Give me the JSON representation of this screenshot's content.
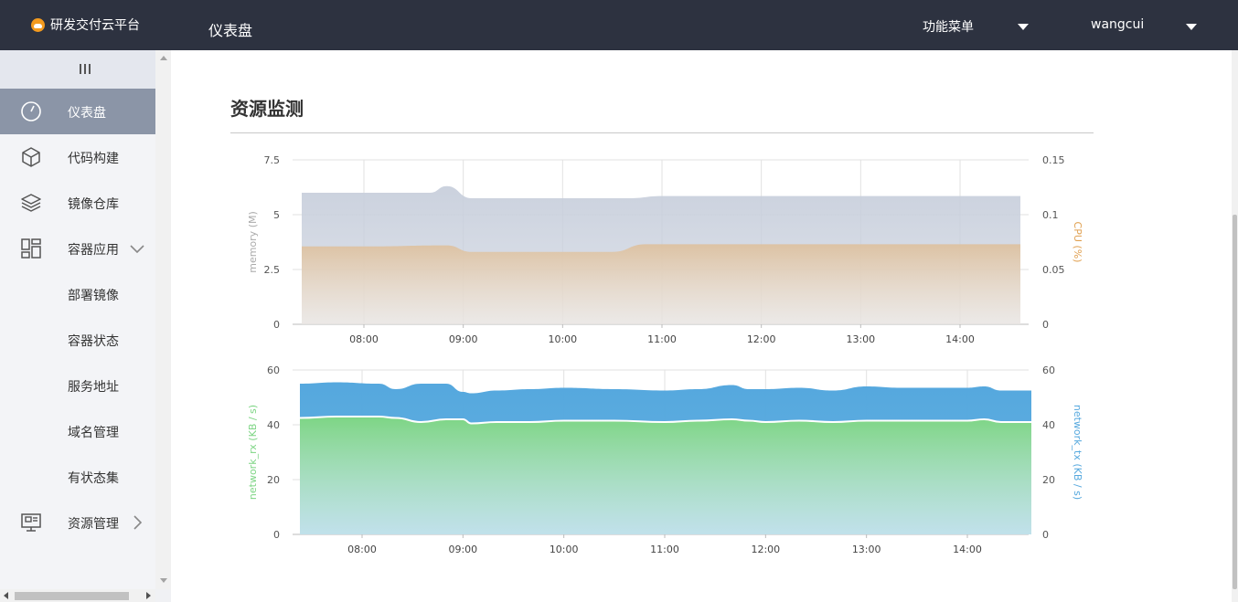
{
  "header": {
    "logo_text": "研发交付云平台",
    "page_title": "仪表盘",
    "menu_label": "功能菜单",
    "user_name": "wangcui"
  },
  "sidebar": {
    "items": [
      {
        "label": "仪表盘",
        "icon": "dashboard-icon",
        "active": true
      },
      {
        "label": "代码构建",
        "icon": "cube-icon"
      },
      {
        "label": "镜像仓库",
        "icon": "layers-icon"
      },
      {
        "label": "容器应用",
        "icon": "grid-icon",
        "expanded": true
      },
      {
        "label": "部署镜像"
      },
      {
        "label": "容器状态"
      },
      {
        "label": "服务地址"
      },
      {
        "label": "域名管理"
      },
      {
        "label": "有状态集"
      },
      {
        "label": "资源管理",
        "icon": "monitor-icon"
      }
    ]
  },
  "main": {
    "section_title": "资源监测"
  },
  "colors": {
    "memory": "#c8cfdc",
    "cpu": "#ddc1a0",
    "network_rx": "#7dd584",
    "network_tx": "#55a8de",
    "cpu_axis": "#e0a050",
    "rx_axis": "#7dd584",
    "tx_axis": "#55a8de"
  },
  "chart_data": [
    {
      "type": "area",
      "x_ticks": [
        "08:00",
        "09:00",
        "10:00",
        "11:00",
        "12:00",
        "13:00",
        "14:00"
      ],
      "ylabel_left": "memory (M)",
      "ylabel_right": "CPU (%)",
      "y_left_ticks": [
        "0",
        "2.5",
        "5",
        "7.5"
      ],
      "y_right_ticks": [
        "0",
        "0.05",
        "0.1",
        "0.15"
      ],
      "ylim_left": [
        0,
        7.5
      ],
      "ylim_right": [
        0,
        0.15
      ],
      "grid": true,
      "series": [
        {
          "name": "memory",
          "axis": "left",
          "x": [
            "07:25",
            "08:00",
            "08:40",
            "08:50",
            "09:05",
            "10:00",
            "10:40",
            "11:00",
            "11:30",
            "12:00",
            "13:00",
            "14:00",
            "14:40"
          ],
          "values": [
            6.0,
            6.0,
            6.0,
            6.3,
            5.75,
            5.75,
            5.75,
            5.85,
            5.85,
            5.85,
            5.85,
            5.85,
            5.85
          ]
        },
        {
          "name": "CPU",
          "axis": "right",
          "x": [
            "07:25",
            "08:00",
            "08:50",
            "09:05",
            "10:00",
            "10:30",
            "10:50",
            "11:00",
            "12:00",
            "13:00",
            "14:00",
            "14:40"
          ],
          "values": [
            0.071,
            0.071,
            0.072,
            0.066,
            0.066,
            0.066,
            0.073,
            0.073,
            0.073,
            0.073,
            0.073,
            0.073
          ]
        }
      ]
    },
    {
      "type": "area",
      "x_ticks": [
        "08:00",
        "09:00",
        "10:00",
        "11:00",
        "12:00",
        "13:00",
        "14:00"
      ],
      "ylabel_left": "network_rx (KB / s)",
      "ylabel_right": "network_tx (KB / s)",
      "y_left_ticks": [
        "0",
        "20",
        "40",
        "60"
      ],
      "y_right_ticks": [
        "0",
        "20",
        "40",
        "60"
      ],
      "ylim_left": [
        0,
        60
      ],
      "ylim_right": [
        0,
        60
      ],
      "grid": true,
      "series": [
        {
          "name": "network_rx",
          "axis": "left",
          "x": [
            "07:25",
            "07:45",
            "08:10",
            "08:20",
            "08:35",
            "08:50",
            "09:00",
            "09:05",
            "09:20",
            "09:40",
            "10:00",
            "10:30",
            "11:00",
            "11:20",
            "11:40",
            "11:50",
            "12:00",
            "12:20",
            "12:40",
            "13:00",
            "13:20",
            "13:40",
            "14:00",
            "14:10",
            "14:20",
            "14:40"
          ],
          "values": [
            42.5,
            43,
            43,
            42.5,
            41,
            42,
            42,
            40.5,
            41,
            41,
            41.5,
            41.5,
            41,
            41.5,
            42,
            41.5,
            41,
            41.5,
            41,
            41.5,
            41.5,
            41.5,
            41.5,
            42,
            41,
            41
          ]
        },
        {
          "name": "network_tx",
          "axis": "right",
          "x": [
            "07:25",
            "07:45",
            "08:10",
            "08:20",
            "08:35",
            "08:50",
            "09:00",
            "09:05",
            "09:20",
            "09:40",
            "10:00",
            "10:30",
            "11:00",
            "11:20",
            "11:40",
            "11:50",
            "12:00",
            "12:20",
            "12:40",
            "13:00",
            "13:20",
            "13:40",
            "14:00",
            "14:10",
            "14:20",
            "14:40"
          ],
          "values": [
            55,
            55.5,
            55,
            53,
            55,
            55,
            52,
            51.5,
            52.5,
            53,
            53.5,
            53,
            52.5,
            53,
            54.5,
            53,
            53,
            53.5,
            52.5,
            54,
            53.5,
            53.5,
            53.5,
            54,
            52.5,
            52.5
          ]
        }
      ]
    }
  ]
}
